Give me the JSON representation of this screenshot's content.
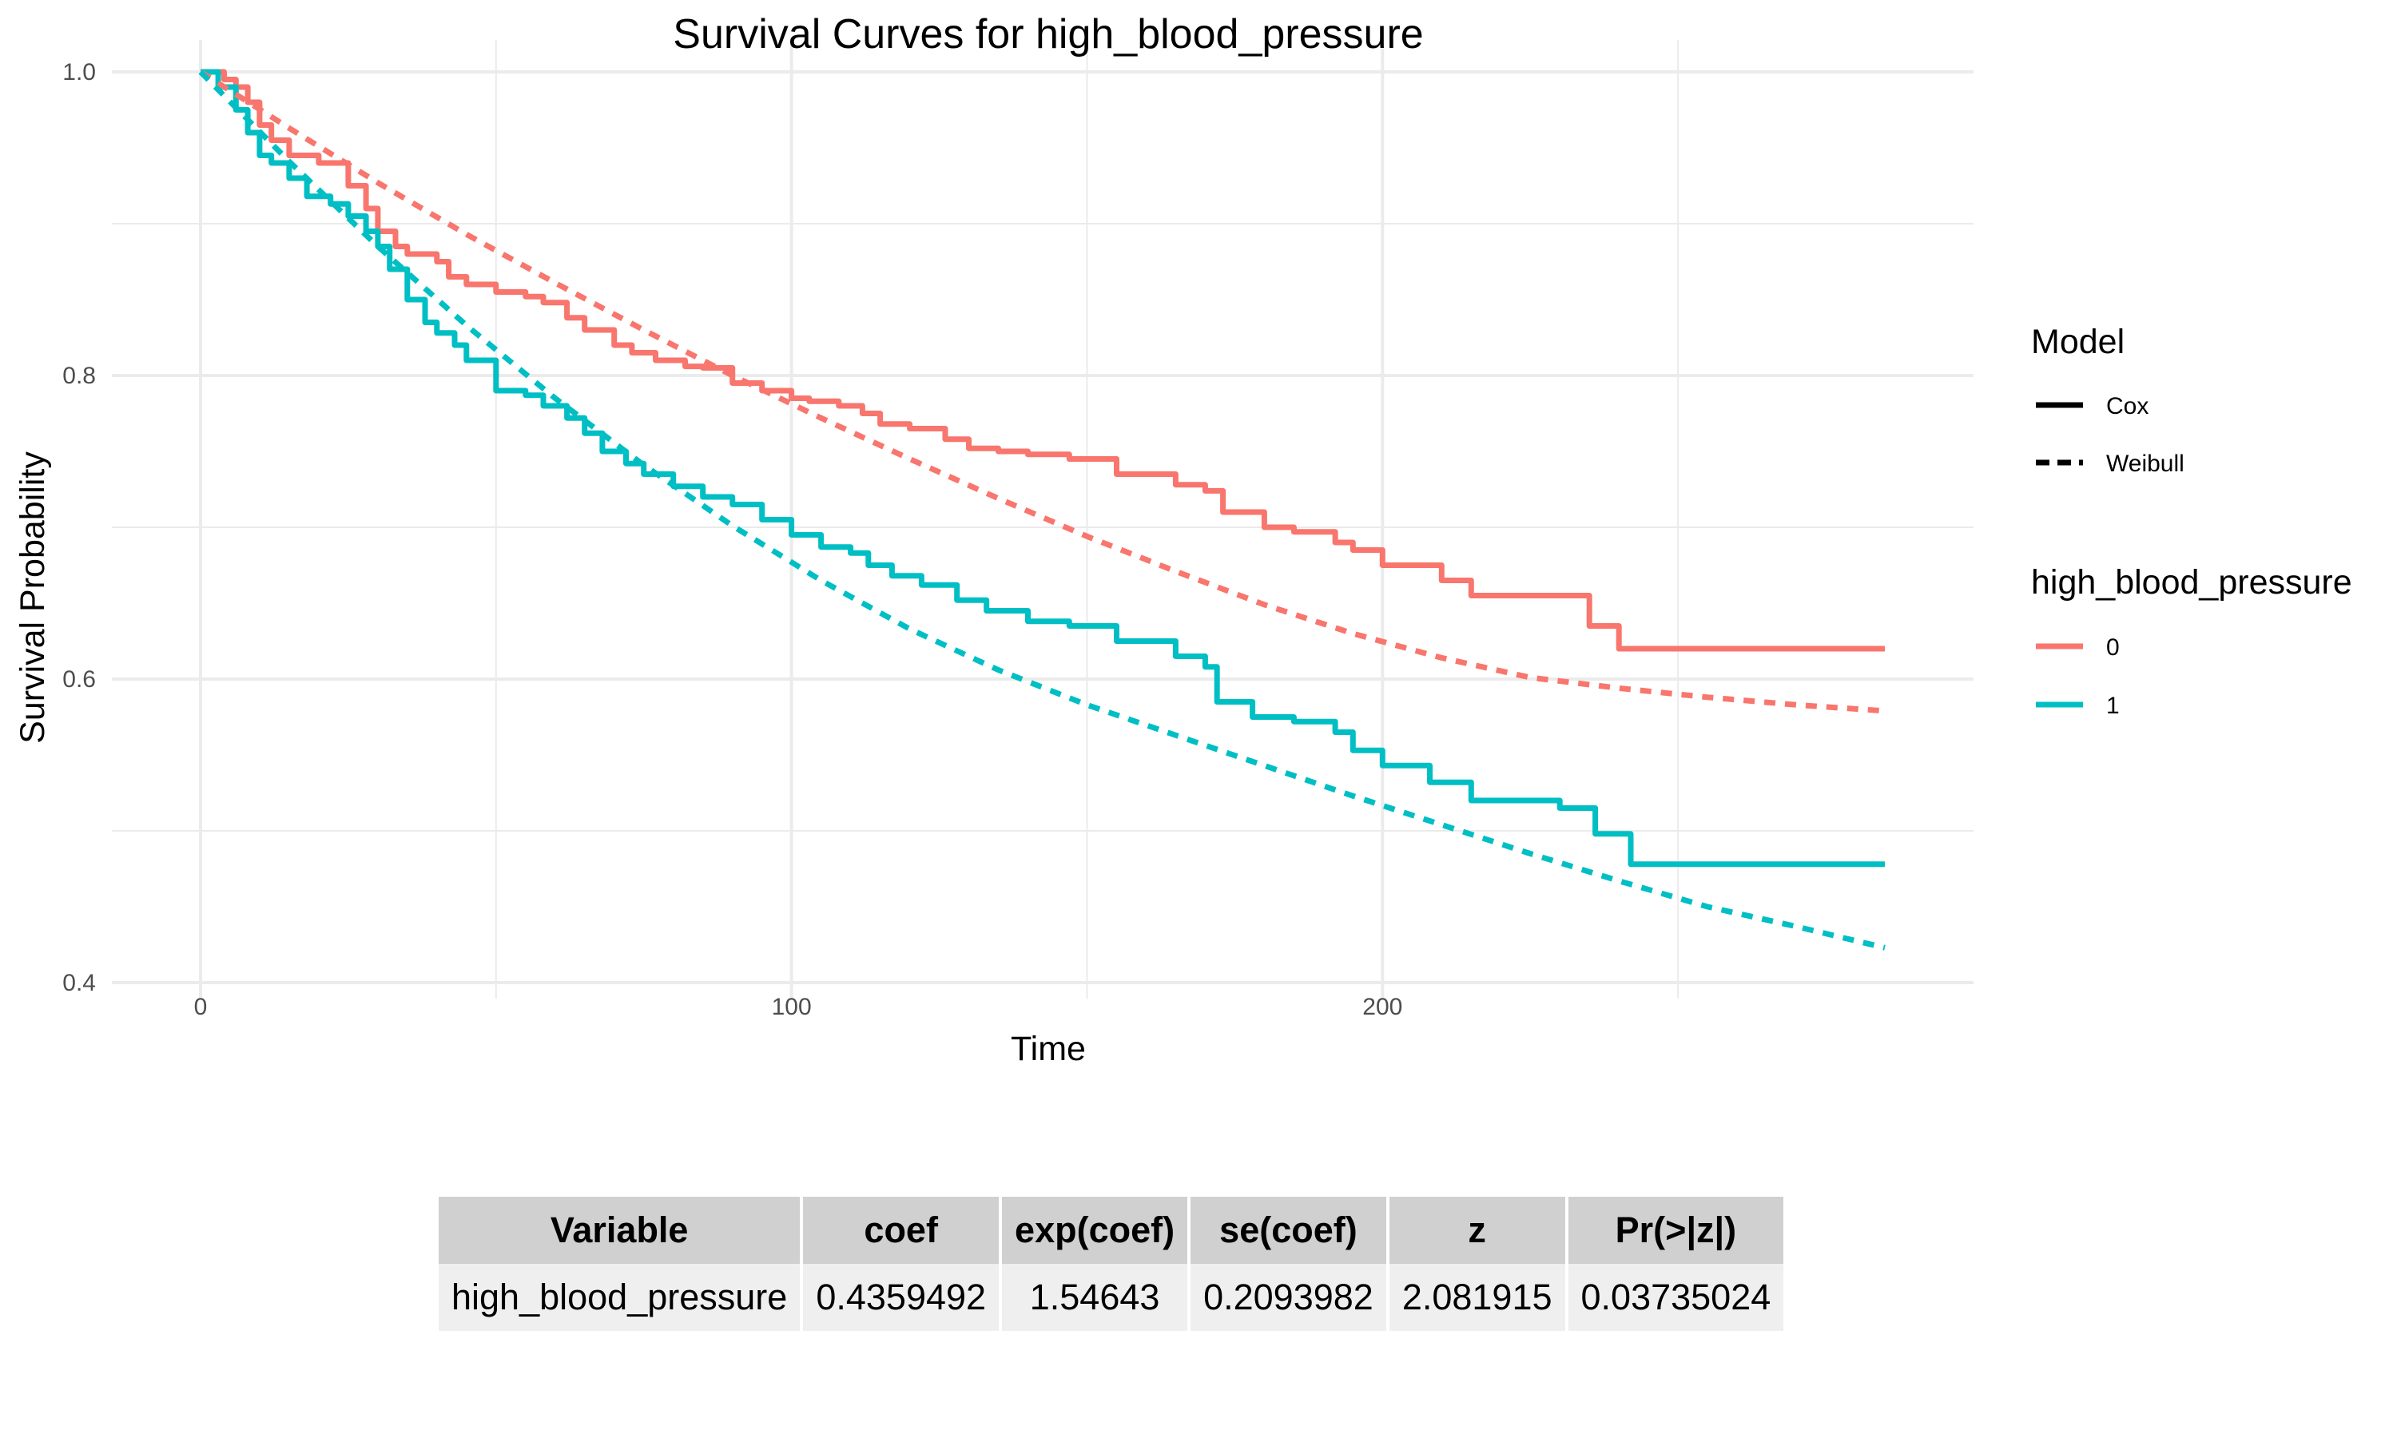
{
  "chart_data": {
    "type": "line",
    "title": "Survival Curves for high_blood_pressure",
    "xlabel": "Time",
    "ylabel": "Survival Probability",
    "xlim": [
      -15,
      300
    ],
    "ylim": [
      0.4,
      1.0
    ],
    "x_ticks": [
      0,
      100,
      200
    ],
    "x_tick_labels": [
      "0",
      "100",
      "200"
    ],
    "y_ticks": [
      0.4,
      0.6,
      0.8,
      1.0
    ],
    "y_tick_labels": [
      "0.4",
      "0.6",
      "0.8",
      "1.0"
    ],
    "grid": true,
    "legend_position": "right",
    "legend": {
      "model_title": "Model",
      "model_entries": [
        {
          "label": "Cox",
          "linetype": "solid"
        },
        {
          "label": "Weibull",
          "linetype": "dashed"
        }
      ],
      "group_title": "high_blood_pressure",
      "group_entries": [
        {
          "label": "0",
          "color": "#F8766D"
        },
        {
          "label": "1",
          "color": "#00BFC4"
        }
      ]
    },
    "series": [
      {
        "group": "0",
        "model": "Cox",
        "color": "#F8766D",
        "step": true,
        "x": [
          0,
          4,
          6,
          8,
          10,
          12,
          15,
          20,
          25,
          28,
          30,
          33,
          35,
          40,
          42,
          45,
          50,
          55,
          58,
          62,
          65,
          70,
          73,
          77,
          82,
          85,
          90,
          95,
          100,
          103,
          108,
          112,
          115,
          120,
          126,
          130,
          135,
          140,
          147,
          155,
          165,
          170,
          173,
          180,
          185,
          192,
          195,
          200,
          210,
          215,
          235,
          240,
          245,
          285
        ],
        "y": [
          1.0,
          0.995,
          0.99,
          0.98,
          0.965,
          0.955,
          0.945,
          0.94,
          0.925,
          0.91,
          0.895,
          0.885,
          0.88,
          0.875,
          0.865,
          0.86,
          0.855,
          0.852,
          0.848,
          0.838,
          0.83,
          0.82,
          0.815,
          0.81,
          0.806,
          0.805,
          0.795,
          0.79,
          0.785,
          0.783,
          0.78,
          0.775,
          0.768,
          0.765,
          0.758,
          0.752,
          0.75,
          0.748,
          0.745,
          0.735,
          0.728,
          0.724,
          0.71,
          0.7,
          0.697,
          0.69,
          0.685,
          0.675,
          0.665,
          0.655,
          0.635,
          0.62,
          0.62,
          0.62
        ]
      },
      {
        "group": "1",
        "model": "Cox",
        "color": "#00BFC4",
        "step": true,
        "x": [
          0,
          3,
          6,
          8,
          10,
          12,
          15,
          18,
          22,
          25,
          28,
          30,
          32,
          35,
          38,
          40,
          43,
          45,
          50,
          55,
          58,
          62,
          65,
          68,
          72,
          75,
          80,
          85,
          90,
          95,
          100,
          105,
          110,
          113,
          117,
          122,
          128,
          133,
          140,
          147,
          155,
          165,
          170,
          172,
          178,
          185,
          192,
          195,
          200,
          208,
          215,
          230,
          236,
          242,
          285
        ],
        "y": [
          1.0,
          0.99,
          0.975,
          0.96,
          0.945,
          0.94,
          0.93,
          0.918,
          0.913,
          0.905,
          0.895,
          0.885,
          0.87,
          0.85,
          0.835,
          0.828,
          0.82,
          0.81,
          0.79,
          0.787,
          0.78,
          0.772,
          0.762,
          0.75,
          0.742,
          0.735,
          0.727,
          0.72,
          0.715,
          0.705,
          0.695,
          0.687,
          0.683,
          0.675,
          0.668,
          0.662,
          0.652,
          0.645,
          0.638,
          0.635,
          0.625,
          0.615,
          0.608,
          0.585,
          0.575,
          0.572,
          0.565,
          0.553,
          0.543,
          0.532,
          0.52,
          0.515,
          0.498,
          0.478,
          0.478
        ]
      },
      {
        "group": "0",
        "model": "Weibull",
        "color": "#F8766D",
        "step": false,
        "x": [
          0,
          15,
          30,
          45,
          60,
          75,
          90,
          105,
          120,
          135,
          150,
          165,
          180,
          195,
          210,
          225,
          240,
          255,
          270,
          285
        ],
        "y": [
          1.0,
          0.963,
          0.927,
          0.893,
          0.861,
          0.83,
          0.8,
          0.772,
          0.745,
          0.719,
          0.694,
          0.671,
          0.649,
          0.63,
          0.614,
          0.601,
          0.594,
          0.588,
          0.583,
          0.579
        ]
      },
      {
        "group": "1",
        "model": "Weibull",
        "color": "#00BFC4",
        "step": false,
        "x": [
          0,
          15,
          30,
          45,
          60,
          75,
          90,
          105,
          120,
          135,
          150,
          165,
          180,
          195,
          210,
          225,
          240,
          255,
          270,
          285
        ],
        "y": [
          1.0,
          0.941,
          0.885,
          0.833,
          0.785,
          0.741,
          0.701,
          0.665,
          0.633,
          0.606,
          0.583,
          0.563,
          0.543,
          0.523,
          0.504,
          0.485,
          0.467,
          0.45,
          0.437,
          0.423
        ]
      }
    ]
  },
  "table": {
    "headers": [
      "Variable",
      "coef",
      "exp(coef)",
      "se(coef)",
      "z",
      "Pr(>|z|)"
    ],
    "row": [
      "high_blood_pressure",
      "0.4359492",
      "1.54643",
      "0.2093982",
      "2.081915",
      "0.03735024"
    ]
  }
}
